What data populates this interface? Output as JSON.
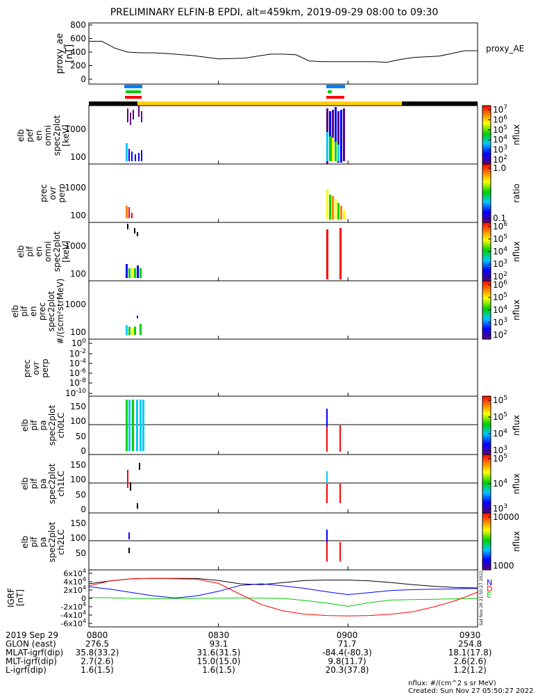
{
  "title": "PRELIMINARY ELFIN-B EPDI, alt=459km, 2019-09-29 08:00 to 09:30",
  "footer": {
    "units": "nflux: #/(cm^2 s sr MeV)",
    "created": "Created: Sun Nov 27 05:50:27 2022",
    "stamp": "Sat Nov 26 21:50:27 2022"
  },
  "tick_rows": [
    {
      "label": "2019 Sep 29",
      "values": [
        "0800",
        "0830",
        "0900",
        "0930"
      ]
    },
    {
      "label": "GLON (east)",
      "values": [
        "276.5",
        "93.1",
        "71.7",
        "254.8"
      ]
    },
    {
      "label": "MLAT-igrf(dip)",
      "values": [
        "35.8(33.2)",
        "31.6(31.5)",
        "-84.4(-80.3)",
        "18.1(17.8)"
      ]
    },
    {
      "label": "MLT-igrf(dip)",
      "values": [
        "2.7(2.6)",
        "15.0(15.0)",
        "9.8(11.7)",
        "2.6(2.6)"
      ]
    },
    {
      "label": "L-igrf(dip)",
      "values": [
        "1.6(1.5)",
        "1.6(1.5)",
        "20.3(37.8)",
        "1.2(1.2)"
      ]
    }
  ],
  "colorbars": {
    "cb1": {
      "label": "nflux",
      "ticks": [
        "10^7",
        "10^6",
        "10^5",
        "10^4",
        "10^3",
        "10^2"
      ]
    },
    "cb2": {
      "label": "ratio",
      "ticks": [
        "1.0",
        "0.1"
      ]
    },
    "cb3": {
      "label": "nflux",
      "ticks": [
        "10^6",
        "10^5",
        "10^4",
        "10^3",
        "10^2"
      ]
    },
    "cb4": {
      "label": "nflux",
      "ticks": [
        "10^6",
        "10^5",
        "10^4",
        "10^3",
        "10^2"
      ]
    },
    "cb5": {
      "label": "nflux",
      "ticks": [
        "10^5",
        "10^5",
        "10^4",
        "10^3"
      ]
    },
    "cb6": {
      "label": "nflux",
      "ticks": [
        "10^5",
        "10^4",
        "10^3"
      ]
    },
    "cb7": {
      "label": "nflux",
      "ticks": [
        "10000",
        "1000"
      ]
    }
  },
  "chart_data": [
    {
      "type": "line",
      "ylabel": "proxy_ae [nT]",
      "yticks": [
        "0",
        "200",
        "400",
        "600",
        "800"
      ],
      "legend": "proxy_AE",
      "ylim": [
        0,
        850
      ],
      "x_minutes": [
        0,
        3,
        6,
        9,
        12,
        15,
        18,
        24,
        30,
        36,
        42,
        45,
        48,
        51,
        54,
        57,
        60,
        63,
        66,
        69,
        72,
        75,
        78,
        81,
        84,
        87,
        90
      ],
      "values": [
        560,
        560,
        460,
        400,
        390,
        390,
        380,
        350,
        300,
        310,
        370,
        370,
        360,
        270,
        260,
        260,
        260,
        260,
        260,
        250,
        290,
        320,
        330,
        340,
        380,
        420,
        420
      ]
    },
    {
      "type": "heatmap",
      "ylabel": "elb pef en omni spec2plot [keV]",
      "yticks": [
        "100",
        "1000"
      ]
    },
    {
      "type": "heatmap",
      "ylabel": "prec ovr perp",
      "yticks": [
        "100",
        "1000"
      ]
    },
    {
      "type": "heatmap",
      "ylabel": "elb pif en omni spec2plot [keV]",
      "yticks": [
        "100",
        "1000"
      ]
    },
    {
      "type": "heatmap",
      "ylabel": "elb pif en prec spec2plot #/(scm^2strMeV)",
      "yticks": [
        "100",
        "1000"
      ]
    },
    {
      "type": "line",
      "ylabel": "prec ovr perp",
      "yticks": [
        "10^0",
        "10^-2",
        "10^-4",
        "10^-6",
        "10^-8",
        "10^-10"
      ]
    },
    {
      "type": "heatmap",
      "ylabel": "elb pif pa spec2plot ch0LC",
      "yticks": [
        "0",
        "50",
        "100",
        "150"
      ]
    },
    {
      "type": "heatmap",
      "ylabel": "elb pif pa spec2plot ch1LC",
      "yticks": [
        "0",
        "50",
        "100",
        "150"
      ]
    },
    {
      "type": "heatmap",
      "ylabel": "elb pif pa spec2plot ch2LC",
      "yticks": [
        "50",
        "100",
        "150"
      ]
    },
    {
      "type": "line",
      "ylabel": "IGRF [nT]",
      "yticks": [
        "-6x10^4",
        "-4x10^4",
        "-2x10^4",
        "0",
        "2x10^4",
        "4x10^4",
        "6x10^4"
      ],
      "ylim": [
        -65000,
        65000
      ],
      "legend": [
        "N",
        "E",
        "D"
      ],
      "x_minutes": [
        0,
        5,
        10,
        15,
        20,
        25,
        30,
        35,
        40,
        45,
        50,
        55,
        60,
        65,
        70,
        75,
        80,
        85,
        90
      ],
      "series": [
        {
          "name": "black",
          "color": "#000000",
          "values": [
            35000,
            42000,
            47000,
            48000,
            48000,
            48000,
            43000,
            35000,
            33000,
            38000,
            43000,
            44000,
            44000,
            42000,
            38000,
            33000,
            29000,
            26000,
            25000
          ]
        },
        {
          "name": "blue",
          "color": "#0000ff",
          "values": [
            28000,
            22000,
            14000,
            6000,
            1000,
            6000,
            17000,
            31000,
            35000,
            30000,
            24000,
            16000,
            9000,
            14000,
            19000,
            21000,
            22000,
            23000,
            24000
          ]
        },
        {
          "name": "green",
          "color": "#00cc00",
          "values": [
            2000,
            1500,
            0,
            -500,
            -500,
            0,
            500,
            1000,
            500,
            0,
            -5000,
            -11000,
            -19000,
            -10000,
            -4000,
            -3000,
            -2000,
            -1000,
            0
          ]
        },
        {
          "name": "red",
          "color": "#ff0000",
          "values": [
            30000,
            42000,
            47000,
            48000,
            47000,
            46000,
            36000,
            10000,
            -15000,
            -30000,
            -38000,
            -41000,
            -42000,
            -41000,
            -38000,
            -32000,
            -20000,
            -5000,
            15000
          ]
        }
      ]
    }
  ]
}
